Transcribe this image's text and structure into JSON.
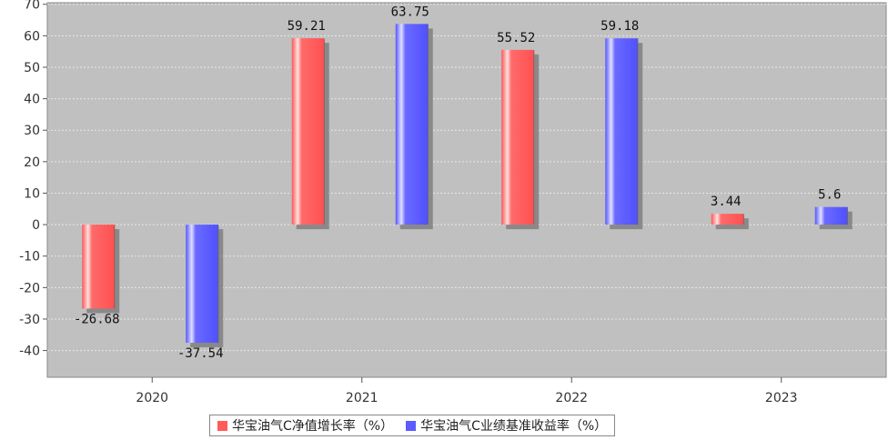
{
  "chart_data": {
    "type": "bar",
    "categories": [
      "2020",
      "2021",
      "2022",
      "2023"
    ],
    "series": [
      {
        "name": "华宝油气C净值增长率（%）",
        "color": "#ff5b5b",
        "values": [
          -26.68,
          59.21,
          55.52,
          3.44
        ]
      },
      {
        "name": "华宝油气C业绩基准收益率（%）",
        "color": "#5b5bff",
        "values": [
          -37.54,
          63.75,
          59.18,
          5.6
        ]
      }
    ],
    "data_labels": {
      "series0": [
        "-26.68",
        "59.21",
        "55.52",
        "3.44"
      ],
      "series1": [
        "-37.54",
        "63.75",
        "59.18",
        "5.6"
      ]
    },
    "y_ticks": [
      70,
      60,
      50,
      40,
      30,
      20,
      10,
      0,
      -10,
      -20,
      -30,
      -40
    ],
    "ylim": [
      -48.5,
      70.5
    ],
    "grid": true,
    "plot_background": "#c0c0c0",
    "legend_position": "bottom",
    "title": "",
    "xlabel": "",
    "ylabel": ""
  }
}
